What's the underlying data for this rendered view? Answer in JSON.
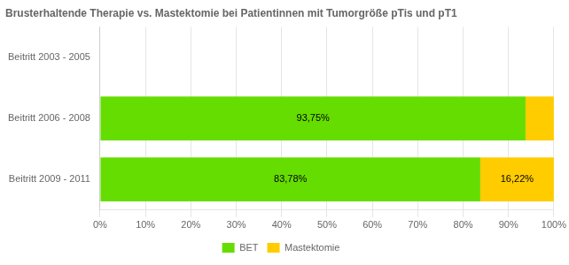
{
  "chart_data": {
    "type": "bar",
    "orientation": "horizontal",
    "stacked": true,
    "title": "Brusterhaltende Therapie vs. Mastektomie bei Patientinnen mit Tumorgröße pTis und pT1",
    "categories": [
      "Beitritt 2009 - 2011",
      "Beitritt 2006 - 2008",
      "Beitritt 2003 - 2005"
    ],
    "series": [
      {
        "name": "BET",
        "color": "#66DD00",
        "values": [
          83.78,
          93.75,
          0
        ],
        "value_labels": [
          "83,78%",
          "93,75%",
          null
        ]
      },
      {
        "name": "Mastektomie",
        "color": "#FFCC00",
        "values": [
          16.22,
          6.25,
          0
        ],
        "value_labels": [
          "16,22%",
          null,
          null
        ]
      }
    ],
    "xlim": [
      0,
      100
    ],
    "xticks": [
      {
        "value": 0,
        "label": "0%"
      },
      {
        "value": 10,
        "label": "10%"
      },
      {
        "value": 20,
        "label": "20%"
      },
      {
        "value": 30,
        "label": "30%"
      },
      {
        "value": 40,
        "label": "40%"
      },
      {
        "value": 50,
        "label": "50%"
      },
      {
        "value": 60,
        "label": "60%"
      },
      {
        "value": 70,
        "label": "70%"
      },
      {
        "value": 80,
        "label": "80%"
      },
      {
        "value": 90,
        "label": "90%"
      },
      {
        "value": 100,
        "label": "100%"
      }
    ],
    "grid": true,
    "legend": "bottom",
    "data_labels": true
  }
}
